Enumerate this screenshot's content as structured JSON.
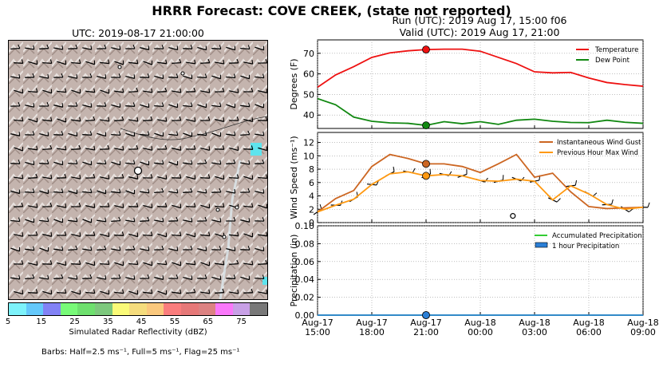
{
  "title": "HRRR Forecast: COVE CREEK, (state not reported)",
  "run_line": "Run (UTC): 2019 Aug 17, 15:00 f06",
  "valid_line": "Valid (UTC): 2019 Aug 17, 21:00",
  "map": {
    "title": "UTC: 2019-08-17 21:00:00",
    "colorbar_label": "Simulated Radar Reflectivity (dBZ)",
    "colorbar_ticks": [
      "5",
      "15",
      "25",
      "35",
      "45",
      "55",
      "65",
      "75"
    ],
    "colorbar_colors": [
      "#7df2fa",
      "#64c8fa",
      "#8282f5",
      "#78fa78",
      "#6ee06e",
      "#7dc87d",
      "#fafa78",
      "#f5dc7d",
      "#fac87d",
      "#fa7d7d",
      "#e67878",
      "#dc8282",
      "#fa78fa",
      "#c8a0e6",
      "#787878"
    ],
    "barbs_note": "Barbs: Half=2.5 ms⁻¹, Full=5 ms⁻¹, Flag=25 ms⁻¹"
  },
  "chart_data": [
    {
      "type": "line",
      "ylabel": "Degrees (F)",
      "ylim": [
        33.5,
        76.5
      ],
      "yticks": [
        40,
        50,
        60,
        70
      ],
      "x": [
        0,
        1,
        2,
        3,
        4,
        5,
        6,
        7,
        8,
        9,
        10,
        11,
        12,
        13,
        14,
        15,
        16,
        17,
        18
      ],
      "series": [
        {
          "name": "Temperature",
          "color": "#ee1111",
          "values": [
            53.5,
            59.5,
            63.5,
            68,
            70.2,
            71.2,
            71.8,
            72,
            72,
            71,
            68,
            65,
            61,
            60.5,
            60.7,
            58,
            55.8,
            54.8,
            54
          ]
        },
        {
          "name": "Dew Point",
          "color": "#118811",
          "values": [
            48,
            45,
            39,
            37,
            36.2,
            36,
            35,
            36.8,
            35.8,
            36.8,
            35.5,
            37.5,
            38,
            37,
            36.4,
            36.3,
            37.5,
            36.5,
            36
          ]
        }
      ],
      "marker_index": 6,
      "legend": "top-right",
      "grid": true
    },
    {
      "type": "line",
      "ylabel": "Wind Speed (ms⁻¹)",
      "ylim": [
        0,
        13.5
      ],
      "yticks": [
        0,
        2,
        4,
        6,
        8,
        10,
        12
      ],
      "x": [
        0,
        1,
        2,
        3,
        4,
        5,
        6,
        7,
        8,
        9,
        10,
        11,
        12,
        13,
        14,
        15,
        16,
        17,
        18
      ],
      "series": [
        {
          "name": "Instantaneous Wind Gust",
          "color": "#cc6622",
          "values": [
            1.6,
            3.6,
            4.8,
            8.4,
            10.2,
            9.6,
            8.8,
            8.8,
            8.4,
            7.5,
            8.8,
            10.2,
            6.8,
            7.4,
            4.6,
            2.4,
            2.1,
            2.2,
            2.3
          ]
        },
        {
          "name": "Previous Hour Max Wind",
          "color": "#ff9911",
          "values": [
            1.6,
            2.6,
            3.5,
            5.7,
            7.3,
            7.6,
            7.0,
            7.2,
            7.0,
            6.3,
            6.2,
            6.5,
            6.2,
            3.4,
            5.5,
            4.3,
            2.7,
            2.0,
            2.3
          ]
        }
      ],
      "marker_index": 6,
      "legend": "top-right",
      "grid": true
    },
    {
      "type": "line",
      "ylabel": "Precipitation (in)",
      "ylim": [
        0,
        0.1
      ],
      "yticks": [
        0.0,
        0.02,
        0.04,
        0.06,
        0.08,
        0.1
      ],
      "yticklabels": [
        "0.00",
        "0.02",
        "0.04",
        "0.06",
        "0.08",
        "0.10"
      ],
      "x": [
        0,
        1,
        2,
        3,
        4,
        5,
        6,
        7,
        8,
        9,
        10,
        11,
        12,
        13,
        14,
        15,
        16,
        17,
        18
      ],
      "series": [
        {
          "name": "Accumulated Precipitation",
          "color": "#33cc33",
          "values": [
            0,
            0,
            0,
            0,
            0,
            0,
            0,
            0,
            0,
            0,
            0,
            0,
            0,
            0,
            0,
            0,
            0,
            0,
            0
          ]
        },
        {
          "name": "1 hour Precipitation",
          "color": "#2b7fd6",
          "values": [
            0,
            0,
            0,
            0,
            0,
            0,
            0,
            0,
            0,
            0,
            0,
            0,
            0,
            0,
            0,
            0,
            0,
            0,
            0
          ]
        }
      ],
      "marker_index": 6,
      "legend": "top-right",
      "grid": true
    }
  ],
  "x_tick_labels": [
    {
      "date": "Aug-17",
      "time": "15:00"
    },
    {
      "date": "Aug-17",
      "time": "18:00"
    },
    {
      "date": "Aug-17",
      "time": "21:00"
    },
    {
      "date": "Aug-18",
      "time": "00:00"
    },
    {
      "date": "Aug-18",
      "time": "03:00"
    },
    {
      "date": "Aug-18",
      "time": "06:00"
    },
    {
      "date": "Aug-18",
      "time": "09:00"
    }
  ]
}
